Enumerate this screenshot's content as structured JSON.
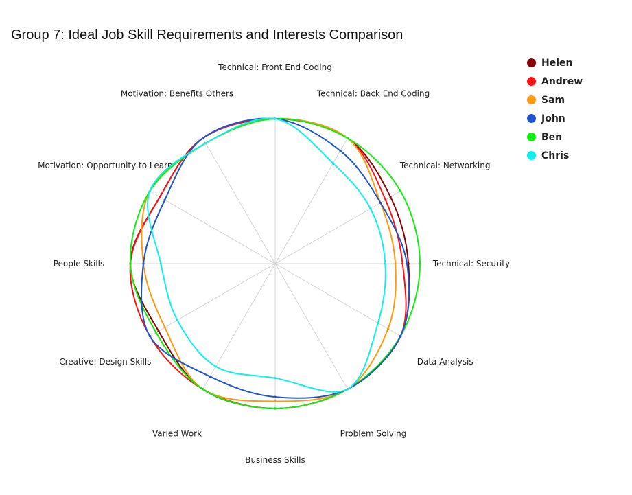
{
  "chart_data": {
    "type": "radar",
    "title": "Group 7: Ideal Job Skill Requirements and Interests Comparison",
    "axes": [
      "Technical: Front End Coding",
      "Technical: Back End Coding",
      "Technical: Networking",
      "Technical: Security",
      "Data Analysis",
      "Problem Solving",
      "Business Skills",
      "Varied Work",
      "Creative: Design Skills",
      "People Skills",
      "Motivation: Opportunity to Learn",
      "Motivation: Benefits Others"
    ],
    "range": [
      0,
      1
    ],
    "series": [
      {
        "name": "Helen",
        "color": "#8b0000",
        "values": [
          1.0,
          1.0,
          0.92,
          0.92,
          1.0,
          1.0,
          1.0,
          1.0,
          0.93,
          1.0,
          0.92,
          1.0
        ]
      },
      {
        "name": "Andrew",
        "color": "#ff1010",
        "values": [
          1.0,
          1.0,
          0.88,
          0.88,
          1.0,
          1.0,
          1.0,
          1.0,
          1.0,
          1.0,
          0.92,
          1.0
        ]
      },
      {
        "name": "Sam",
        "color": "#ff9a10",
        "values": [
          1.0,
          1.0,
          0.84,
          0.83,
          0.9,
          1.0,
          0.95,
          1.0,
          0.88,
          0.91,
          1.0,
          0.96
        ]
      },
      {
        "name": "John",
        "color": "#1f55cc",
        "values": [
          1.0,
          0.9,
          0.84,
          0.91,
          1.0,
          1.0,
          0.92,
          0.9,
          1.0,
          0.91,
          0.88,
          1.0
        ]
      },
      {
        "name": "Ben",
        "color": "#10ee10",
        "values": [
          1.0,
          1.0,
          1.0,
          1.0,
          1.0,
          1.0,
          1.0,
          1.0,
          0.95,
          1.0,
          1.0,
          0.96
        ]
      },
      {
        "name": "Chris",
        "color": "#10eeee",
        "values": [
          1.0,
          0.8,
          0.76,
          0.76,
          0.82,
          1.0,
          0.79,
          0.82,
          0.78,
          0.79,
          1.0,
          0.96
        ]
      }
    ],
    "grid": true,
    "legend_position": "top-right"
  }
}
